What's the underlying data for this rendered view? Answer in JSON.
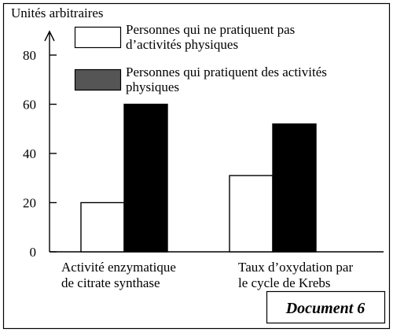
{
  "chart_data": {
    "type": "bar",
    "ylabel": "Unités arbitraires",
    "ylim": [
      0,
      85
    ],
    "yticks": [
      0,
      20,
      40,
      60,
      80
    ],
    "categories": [
      [
        "Activité enzymatique",
        "de citrate synthase"
      ],
      [
        "Taux d’oxydation par",
        "le cycle de Krebs"
      ]
    ],
    "series": [
      {
        "name": [
          "Personnes qui ne pratiquent pas",
          "d’activités physiques"
        ],
        "values": [
          20,
          31
        ],
        "color": "#ffffff"
      },
      {
        "name": [
          "Personnes qui pratiquent des activités",
          "physiques"
        ],
        "values": [
          60,
          52
        ],
        "color": "#000000",
        "legend_color": "#555555"
      }
    ],
    "legend": "top-right",
    "grid": false,
    "label": "Document 6"
  }
}
